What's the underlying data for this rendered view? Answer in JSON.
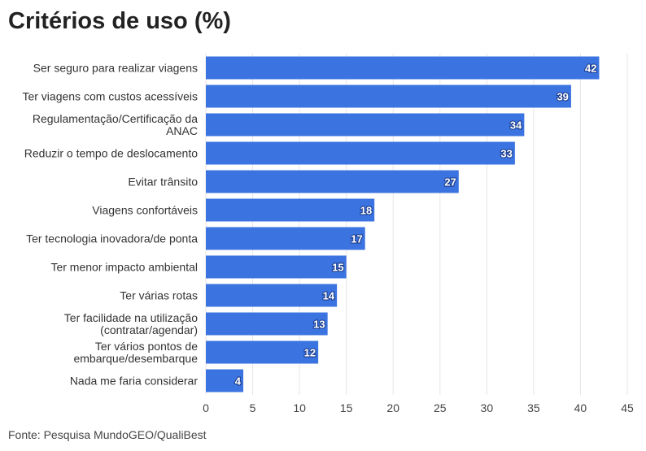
{
  "chart_data": {
    "type": "bar",
    "orientation": "horizontal",
    "title": "Critérios de uso (%)",
    "source": "Fonte: Pesquisa MundoGEO/QualiBest",
    "categories": [
      "Ser seguro para realizar viagens",
      "Ter viagens com custos acessíveis",
      "Regulamentação/Certificação da ANAC",
      "Reduzir o tempo de deslocamento",
      "Evitar trânsito",
      "Viagens confortáveis",
      "Ter tecnologia inovadora/de ponta",
      "Ter menor impacto ambiental",
      "Ter várias rotas",
      "Ter facilidade na utilização (contratar/agendar)",
      "Ter vários pontos de embarque/desembarque",
      "Nada me faria considerar"
    ],
    "category_lines": [
      [
        "Ser seguro para realizar viagens"
      ],
      [
        "Ter viagens com custos acessíveis"
      ],
      [
        "Regulamentação/Certificação da",
        "ANAC"
      ],
      [
        "Reduzir o tempo de deslocamento"
      ],
      [
        "Evitar trânsito"
      ],
      [
        "Viagens confortáveis"
      ],
      [
        "Ter tecnologia inovadora/de ponta"
      ],
      [
        "Ter menor impacto ambiental"
      ],
      [
        "Ter várias rotas"
      ],
      [
        "Ter facilidade na utilização",
        "(contratar/agendar)"
      ],
      [
        "Ter vários pontos de",
        "embarque/desembarque"
      ],
      [
        "Nada me faria considerar"
      ]
    ],
    "values": [
      42,
      39,
      34,
      33,
      27,
      18,
      17,
      15,
      14,
      13,
      12,
      4
    ],
    "xlim": [
      0,
      45
    ],
    "xticks": [
      0,
      5,
      10,
      15,
      20,
      25,
      30,
      35,
      40,
      45
    ],
    "xlabel": "",
    "ylabel": "",
    "grid": true,
    "bar_color": "#3b73e0"
  }
}
